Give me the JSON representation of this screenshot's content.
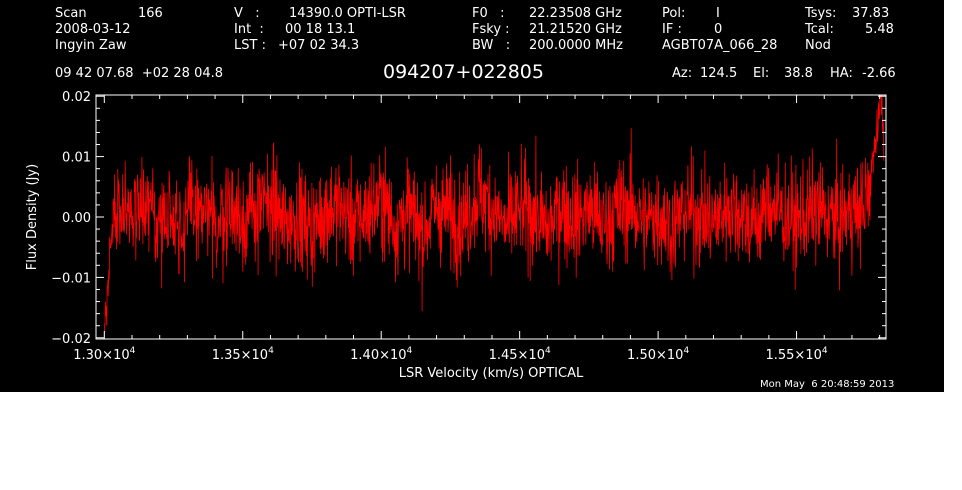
{
  "header": {
    "col1": {
      "scan_label": "Scan",
      "scan_value": "166",
      "date": "2008-03-12",
      "observer": "Ingyin Zaw"
    },
    "col2": {
      "v_label": "V   :",
      "v_value": "14390.0 OPTI-LSR",
      "int_label": "Int  :",
      "int_value": "00 18 13.1",
      "lst_label": "LST :",
      "lst_value": "+07 02 34.3"
    },
    "col3": {
      "f0_label": "F0   :",
      "f0_value": "22.23508 GHz",
      "fsky_label": "Fsky :",
      "fsky_value": "21.21520 GHz",
      "bw_label": "BW   :",
      "bw_value": "200.0000 MHz"
    },
    "col4": {
      "pol_label": "Pol:",
      "pol_value": "I",
      "if_label": "IF :",
      "if_value": "0",
      "project": "AGBT07A_066_28"
    },
    "col5": {
      "tsys_label": "Tsys:",
      "tsys_value": "37.83",
      "tcal_label": "Tcal:",
      "tcal_value": "5.48",
      "mode": "Nod"
    },
    "coords": "09 42 07.68  +02 28 04.8",
    "source": "094207+022805",
    "pointing": {
      "az_label": "Az:",
      "az_value": "124.5",
      "el_label": "El:",
      "el_value": "38.8",
      "ha_label": "HA:",
      "ha_value": "-2.66"
    }
  },
  "timestamp": "Mon May  6 20:48:59 2013",
  "colors": {
    "background": "#000000",
    "axes": "#ffffff",
    "trace": "#ff0000"
  },
  "chart_data": {
    "type": "line",
    "xlabel": "LSR Velocity (km/s) OPTICAL",
    "ylabel": "Flux Density (Jy)",
    "xlim": [
      12970,
      15823
    ],
    "ylim": [
      -0.0202,
      0.0202
    ],
    "xticks": [
      {
        "value": 13000,
        "mantissa": "1.30×10",
        "exp": "4"
      },
      {
        "value": 13500,
        "mantissa": "1.35×10",
        "exp": "4"
      },
      {
        "value": 14000,
        "mantissa": "1.40×10",
        "exp": "4"
      },
      {
        "value": 14500,
        "mantissa": "1.45×10",
        "exp": "4"
      },
      {
        "value": 15000,
        "mantissa": "1.50×10",
        "exp": "4"
      },
      {
        "value": 15500,
        "mantissa": "1.55×10",
        "exp": "4"
      }
    ],
    "yticks": [
      {
        "value": -0.02,
        "label": "−0.02"
      },
      {
        "value": -0.01,
        "label": "−0.01"
      },
      {
        "value": 0.0,
        "label": "0.00"
      },
      {
        "value": 0.01,
        "label": "0.01"
      },
      {
        "value": 0.02,
        "label": "0.02"
      }
    ],
    "grid": false,
    "series": [
      {
        "x": [
          13000,
          13010,
          13020,
          13030,
          13050,
          13080,
          13120,
          13140,
          13160,
          13200,
          13250,
          13280,
          13300,
          13350,
          13400,
          13450,
          13500,
          13550,
          13600,
          13650,
          13700,
          13750,
          13800,
          13850,
          13900,
          13950,
          14000,
          14050,
          14100,
          14150,
          14200,
          14250,
          14300,
          14350,
          14400,
          14450,
          14500,
          14550,
          14600,
          14650,
          14700,
          14750,
          14800,
          14850,
          14900,
          14950,
          15000,
          15050,
          15100,
          15150,
          15200,
          15250,
          15300,
          15350,
          15400,
          15450,
          15500,
          15550,
          15600,
          15650,
          15700,
          15720,
          15740,
          15760,
          15780,
          15790,
          15800,
          15810,
          15815
        ],
        "y": [
          -0.019,
          -0.012,
          -0.006,
          -0.001,
          0.003,
          0.004,
          0.002,
          0.006,
          0.001,
          -0.003,
          0.005,
          -0.008,
          0.004,
          0.002,
          -0.005,
          0.006,
          -0.002,
          0.003,
          0.007,
          -0.004,
          0.001,
          -0.006,
          0.004,
          0.005,
          -0.003,
          0.002,
          0.009,
          -0.004,
          0.003,
          -0.007,
          0.005,
          0.001,
          -0.002,
          0.012,
          0.004,
          -0.005,
          0.003,
          0.002,
          -0.006,
          0.006,
          -0.002,
          0.004,
          -0.004,
          0.003,
          0.006,
          -0.003,
          0.002,
          -0.005,
          0.004,
          0.001,
          -0.003,
          0.005,
          0.002,
          -0.004,
          0.007,
          0.001,
          -0.003,
          0.003,
          0.002,
          -0.002,
          0.004,
          0.001,
          0.006,
          0.009,
          0.012,
          0.015,
          0.019,
          0.017,
          0.013
        ]
      }
    ],
    "noise_rms": 0.0042
  }
}
